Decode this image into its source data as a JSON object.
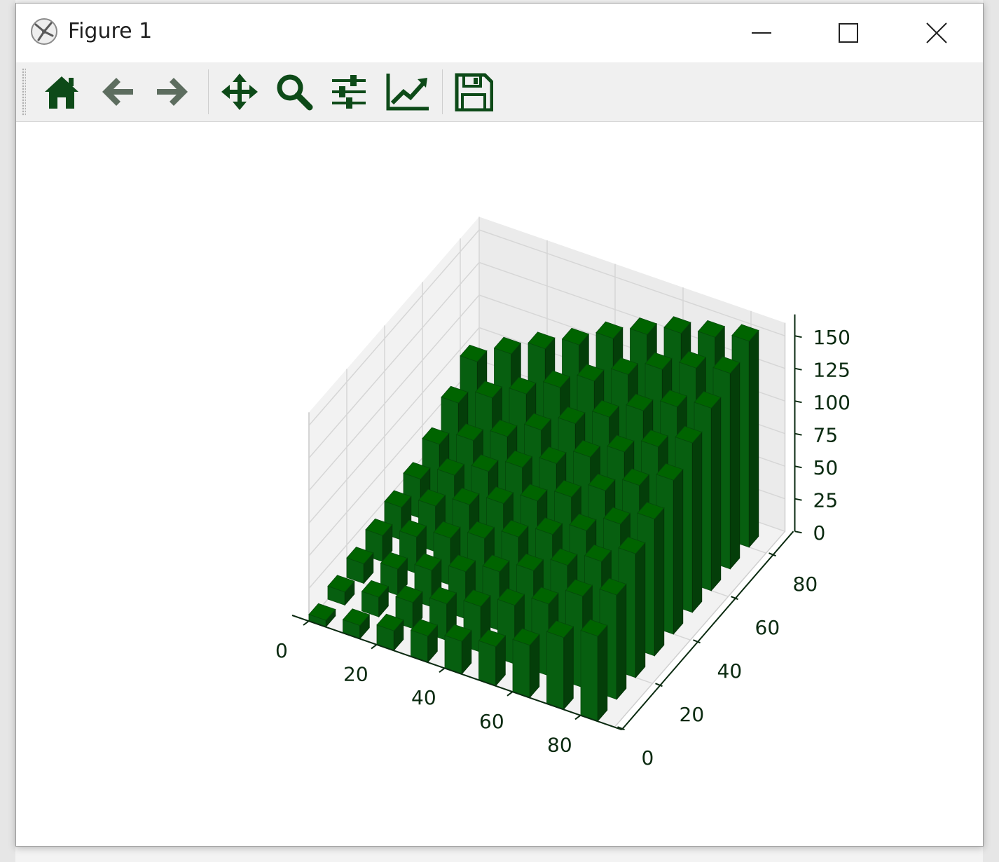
{
  "window": {
    "title": "Figure 1",
    "buttons": {
      "minimize": "minimize",
      "maximize": "maximize",
      "close": "close"
    }
  },
  "toolbar": {
    "tools": [
      {
        "name": "home-icon",
        "label": "Home"
      },
      {
        "name": "back-icon",
        "label": "Back"
      },
      {
        "name": "forward-icon",
        "label": "Forward"
      },
      {
        "name": "pan-icon",
        "label": "Pan"
      },
      {
        "name": "zoom-icon",
        "label": "Zoom"
      },
      {
        "name": "configure-subplots-icon",
        "label": "Subplots"
      },
      {
        "name": "edit-axes-icon",
        "label": "Customize"
      },
      {
        "name": "save-icon",
        "label": "Save"
      }
    ],
    "icon_color": "#0d4a18",
    "disabled_icon_color": "#5d6d5f"
  },
  "chart_data": {
    "type": "bar3d",
    "title": "",
    "xlabel": "",
    "ylabel": "",
    "zlabel": "",
    "bar_color": "#006400",
    "grid": true,
    "xlim": [
      0,
      90
    ],
    "ylim": [
      0,
      90
    ],
    "zlim": [
      0,
      160
    ],
    "x_ticks": [
      "0",
      "20",
      "40",
      "60",
      "80"
    ],
    "y_ticks": [
      "0",
      "20",
      "40",
      "60",
      "80"
    ],
    "z_ticks": [
      "0",
      "25",
      "50",
      "75",
      "100",
      "125",
      "150"
    ],
    "x_positions": [
      0,
      10,
      20,
      30,
      40,
      50,
      60,
      70,
      80
    ],
    "y_positions": [
      0,
      10,
      20,
      30,
      40,
      50,
      60,
      70,
      80
    ],
    "bar_width": 5,
    "bar_depth": 5,
    "heights": [
      [
        5,
        10,
        15,
        20,
        25,
        30,
        40,
        55,
        65
      ],
      [
        10,
        15,
        20,
        28,
        35,
        45,
        55,
        70,
        80
      ],
      [
        15,
        20,
        28,
        36,
        45,
        55,
        68,
        80,
        95
      ],
      [
        20,
        28,
        36,
        45,
        55,
        66,
        78,
        92,
        105
      ],
      [
        25,
        35,
        45,
        55,
        66,
        78,
        92,
        105,
        118
      ],
      [
        30,
        42,
        54,
        66,
        78,
        92,
        105,
        118,
        130
      ],
      [
        40,
        52,
        64,
        78,
        92,
        106,
        120,
        132,
        140
      ],
      [
        55,
        68,
        80,
        94,
        108,
        122,
        135,
        145,
        150
      ],
      [
        70,
        85,
        98,
        110,
        124,
        136,
        146,
        152,
        158
      ]
    ]
  }
}
